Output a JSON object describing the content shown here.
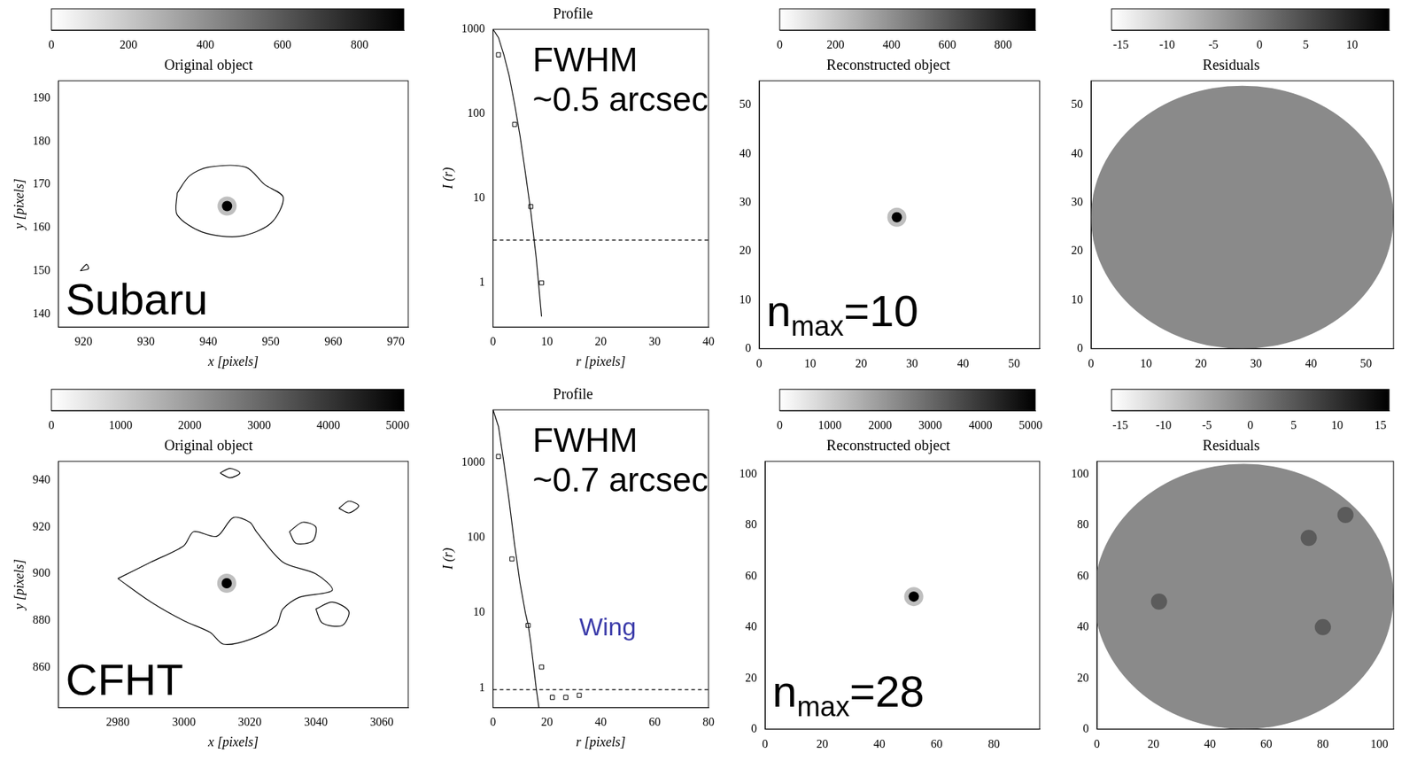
{
  "chart_data": [
    {
      "type": "image",
      "title": "Original object",
      "label": "Subaru",
      "xlabel": "x [pixels]",
      "ylabel": "y [pixels]",
      "xlim": [
        916,
        972
      ],
      "ylim": [
        137,
        194
      ],
      "xticks": [
        920,
        930,
        940,
        950,
        960,
        970
      ],
      "yticks": [
        140,
        150,
        160,
        170,
        180,
        190
      ],
      "colorbar": {
        "range": [
          0,
          915
        ],
        "ticks": [
          0,
          200,
          400,
          600,
          800
        ]
      },
      "source": {
        "x": 943,
        "y": 165
      },
      "contours": [
        [
          [
            935,
            168
          ],
          [
            937,
            172
          ],
          [
            940,
            174
          ],
          [
            946,
            174
          ],
          [
            949,
            170
          ],
          [
            952,
            167
          ],
          [
            950,
            161
          ],
          [
            945,
            158
          ],
          [
            939,
            159
          ],
          [
            935,
            163
          ],
          [
            935,
            168
          ]
        ],
        [
          [
            919.5,
            150
          ],
          [
            920.5,
            151.5
          ],
          [
            920.8,
            150.5
          ],
          [
            919.5,
            150
          ]
        ]
      ]
    },
    {
      "type": "line",
      "title": "Profile",
      "xlabel": "r [pixels]",
      "ylabel": "I (r)",
      "log": "y",
      "xlim": [
        0,
        40
      ],
      "ylim": [
        0.3,
        1000
      ],
      "xticks": [
        0,
        10,
        20,
        30,
        40
      ],
      "yticks": [
        1,
        10,
        100,
        1000
      ],
      "annotation": [
        "FWHM",
        "~0.5 arcsec"
      ],
      "series": [
        {
          "type": "line",
          "color": "#000000",
          "x": [
            0,
            1,
            2,
            3,
            4,
            5,
            6,
            7,
            8,
            9
          ],
          "values": [
            1000,
            800,
            500,
            280,
            130,
            55,
            20,
            7,
            2,
            0.4
          ]
        },
        {
          "type": "scatter",
          "marker": "square",
          "color": "#000000",
          "x": [
            1,
            4,
            7,
            9
          ],
          "values": [
            500,
            75,
            8,
            1
          ]
        },
        {
          "type": "line",
          "line_style": "dashed",
          "color": "#000000",
          "x": [
            0,
            40
          ],
          "values": [
            3.2,
            3.2
          ]
        }
      ]
    },
    {
      "type": "image",
      "title": "Reconstructed object",
      "xlim": [
        0,
        55
      ],
      "ylim": [
        0,
        55
      ],
      "xticks": [
        0,
        10,
        20,
        30,
        40,
        50
      ],
      "yticks": [
        0,
        10,
        20,
        30,
        40,
        50
      ],
      "colorbar": {
        "range": [
          0,
          915
        ],
        "ticks": [
          0,
          200,
          400,
          600,
          800
        ]
      },
      "source": {
        "x": 27,
        "y": 27
      },
      "label_parts": [
        "n",
        "max",
        "=10"
      ]
    },
    {
      "type": "image",
      "title": "Residuals",
      "xlim": [
        0,
        55
      ],
      "ylim": [
        0,
        55
      ],
      "xticks": [
        0,
        10,
        20,
        30,
        40,
        50
      ],
      "yticks": [
        0,
        10,
        20,
        30,
        40,
        50
      ],
      "colorbar": {
        "range": [
          -16,
          14
        ],
        "ticks": [
          -15,
          -10,
          -5,
          0,
          5,
          10
        ]
      },
      "aperture": {
        "x": 27.5,
        "y": 27,
        "rx": 27.5,
        "ry": 27
      }
    },
    {
      "type": "image",
      "title": "Original object",
      "label": "CFHT",
      "xlabel": "x [pixels]",
      "ylabel": "y [pixels]",
      "xlim": [
        2962,
        3068
      ],
      "ylim": [
        843,
        948
      ],
      "xticks": [
        2980,
        3000,
        3020,
        3040,
        3060
      ],
      "yticks": [
        860,
        880,
        900,
        920,
        940
      ],
      "colorbar": {
        "range": [
          0,
          5090
        ],
        "ticks": [
          0,
          1000,
          2000,
          3000,
          4000,
          5000
        ]
      },
      "source": {
        "x": 3013,
        "y": 896
      },
      "contours": [
        [
          [
            2980,
            898
          ],
          [
            2990,
            905
          ],
          [
            3000,
            912
          ],
          [
            3003,
            918
          ],
          [
            3010,
            916
          ],
          [
            3015,
            924
          ],
          [
            3020,
            922
          ],
          [
            3022,
            918
          ],
          [
            3030,
            905
          ],
          [
            3040,
            900
          ],
          [
            3045,
            893
          ],
          [
            3035,
            890
          ],
          [
            3030,
            885
          ],
          [
            3028,
            878
          ],
          [
            3020,
            872
          ],
          [
            3012,
            870
          ],
          [
            3008,
            875
          ],
          [
            3000,
            880
          ],
          [
            2990,
            888
          ],
          [
            2980,
            898
          ]
        ],
        [
          [
            3032,
            918
          ],
          [
            3036,
            922
          ],
          [
            3040,
            920
          ],
          [
            3039,
            914
          ],
          [
            3034,
            913
          ],
          [
            3032,
            918
          ]
        ],
        [
          [
            3047,
            928
          ],
          [
            3050,
            931
          ],
          [
            3053,
            929
          ],
          [
            3050,
            926
          ],
          [
            3047,
            928
          ]
        ],
        [
          [
            3040,
            885
          ],
          [
            3045,
            888
          ],
          [
            3050,
            884
          ],
          [
            3048,
            878
          ],
          [
            3042,
            879
          ],
          [
            3040,
            885
          ]
        ],
        [
          [
            3011,
            943
          ],
          [
            3014,
            945
          ],
          [
            3017,
            943
          ],
          [
            3014,
            941
          ],
          [
            3011,
            943
          ]
        ]
      ]
    },
    {
      "type": "line",
      "title": "Profile",
      "xlabel": "r [pixels]",
      "ylabel": "I (r)",
      "log": "y",
      "xlim": [
        0,
        80
      ],
      "ylim": [
        0.55,
        5000
      ],
      "xticks": [
        0,
        20,
        40,
        60,
        80
      ],
      "yticks": [
        1,
        10,
        100,
        1000
      ],
      "annotation": [
        "FWHM",
        "~0.7 arcsec"
      ],
      "note": {
        "text": "Wing",
        "color": "#3c3caa"
      },
      "series": [
        {
          "type": "line",
          "color": "#000000",
          "x": [
            0,
            2,
            4,
            6,
            8,
            10,
            12,
            13,
            14,
            15,
            16,
            17
          ],
          "values": [
            5000,
            3000,
            1000,
            300,
            80,
            25,
            10,
            7,
            4,
            2,
            1,
            0.55
          ]
        },
        {
          "type": "scatter",
          "marker": "square",
          "color": "#000000",
          "x": [
            2,
            7,
            13,
            18,
            22,
            27,
            32
          ],
          "values": [
            1200,
            52,
            6.8,
            1.9,
            0.75,
            0.75,
            0.8
          ]
        },
        {
          "type": "line",
          "line_style": "dashed",
          "color": "#000000",
          "x": [
            0,
            80
          ],
          "values": [
            0.95,
            0.95
          ]
        }
      ]
    },
    {
      "type": "image",
      "title": "Reconstructed object",
      "xlim": [
        0,
        96
      ],
      "ylim": [
        0,
        105
      ],
      "xticks": [
        0,
        20,
        40,
        60,
        80
      ],
      "yticks": [
        0,
        20,
        40,
        60,
        80,
        100
      ],
      "colorbar": {
        "range": [
          0,
          5090
        ],
        "ticks": [
          0,
          1000,
          2000,
          3000,
          4000,
          5000
        ]
      },
      "source": {
        "x": 52,
        "y": 52
      },
      "label_parts": [
        "n",
        "max",
        "=28"
      ]
    },
    {
      "type": "image",
      "title": "Residuals",
      "xlim": [
        0,
        105
      ],
      "ylim": [
        0,
        105
      ],
      "xticks": [
        0,
        20,
        40,
        60,
        80,
        100
      ],
      "yticks": [
        0,
        20,
        40,
        60,
        80,
        100
      ],
      "colorbar": {
        "range": [
          -16,
          16
        ],
        "ticks": [
          -15,
          -10,
          -5,
          0,
          5,
          10,
          15
        ]
      },
      "aperture": {
        "x": 52,
        "y": 52,
        "rx": 53,
        "ry": 52
      },
      "features": [
        [
          22,
          50
        ],
        [
          75,
          75
        ],
        [
          80,
          40
        ],
        [
          88,
          84
        ]
      ]
    }
  ]
}
